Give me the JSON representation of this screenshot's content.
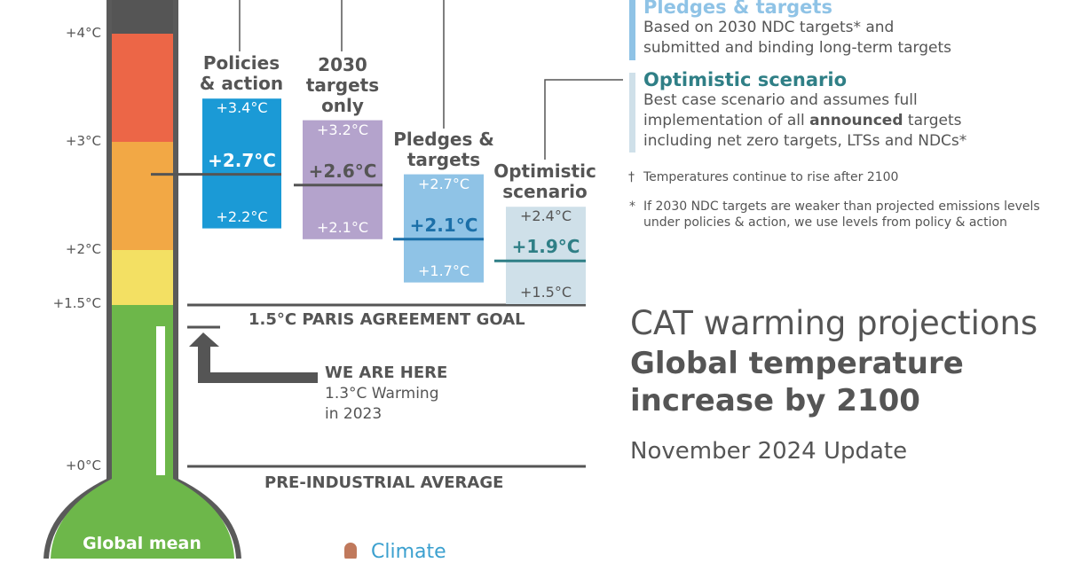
{
  "axis": {
    "ticks": [
      {
        "label": "+4°C",
        "value": 4
      },
      {
        "label": "+3°C",
        "value": 3
      },
      {
        "label": "+2°C",
        "value": 2
      },
      {
        "label": "+1.5°C",
        "value": 1.5
      },
      {
        "label": "+0°C",
        "value": 0
      }
    ]
  },
  "chart_data": {
    "type": "bar",
    "title": "CAT warming projections",
    "subtitle": "Global temperature increase by 2100",
    "update": "November 2024 Update",
    "ylabel": "Global mean",
    "ylim": [
      0,
      4.8
    ],
    "series": [
      {
        "name": "Policies & action",
        "low": 2.2,
        "high": 3.4,
        "median": 2.7,
        "low_label": "+2.2°C",
        "high_label": "+3.4°C",
        "median_label": "+2.7°C",
        "color": "#1b9ad6"
      },
      {
        "name": "2030 targets only",
        "low": 2.1,
        "high": 3.2,
        "median": 2.6,
        "low_label": "+2.1°C",
        "high_label": "+3.2°C",
        "median_label": "+2.6°C",
        "color": "#b4a3cc"
      },
      {
        "name": "Pledges & targets",
        "low": 1.7,
        "high": 2.7,
        "median": 2.1,
        "low_label": "+1.7°C",
        "high_label": "+2.7°C",
        "median_label": "+2.1°C",
        "color": "#8fc3e6"
      },
      {
        "name": "Optimistic scenario",
        "low": 1.5,
        "high": 2.4,
        "median": 1.9,
        "low_label": "+1.5°C",
        "high_label": "+2.4°C",
        "median_label": "+1.9°C",
        "color": "#cfe0e9"
      }
    ],
    "reference_lines": [
      {
        "label": "1.5°C PARIS AGREEMENT GOAL",
        "value": 1.5
      },
      {
        "label": "PRE-INDUSTRIAL AVERAGE",
        "value": 0
      }
    ],
    "current": {
      "value": 1.3,
      "title": "WE ARE HERE",
      "line1": "1.3°C Warming",
      "line2": "in 2023"
    }
  },
  "categories": {
    "c1": {
      "l1": "Policies",
      "l2": "& action"
    },
    "c2": {
      "l1": "2030",
      "l2": "targets",
      "l3": "only"
    },
    "c3": {
      "l1": "Pledges &",
      "l2": "targets"
    },
    "c4": {
      "l1": "Optimistic",
      "l2": "scenario"
    }
  },
  "legend": {
    "pledges": {
      "title": "Pledges & targets",
      "line1": "Based on 2030 NDC targets* and",
      "line2": "submitted and binding long-term targets",
      "color": "#8fc3e6"
    },
    "optimistic": {
      "title": "Optimistic scenario",
      "line1": "Best case scenario and assumes full",
      "line2a": "implementation of all ",
      "line2b": "announced",
      "line2c": " targets",
      "line3": "including net zero targets, LTSs and NDCs*",
      "color": "#2f7f86"
    }
  },
  "notes": {
    "dagger_mark": "†",
    "dagger_text": "Temperatures continue to rise after 2100",
    "star_mark": "*",
    "star_line1": "If 2030 NDC targets are weaker than projected emissions levels",
    "star_line2": "under policies & action, we use levels from policy & action"
  },
  "titles": {
    "main": "CAT warming projections",
    "sub1": "Global temperature",
    "sub2": "increase by 2100",
    "update": "November 2024 Update"
  },
  "thermometer": {
    "bulb_label": "Global mean"
  },
  "logo": {
    "text": "Climate"
  }
}
